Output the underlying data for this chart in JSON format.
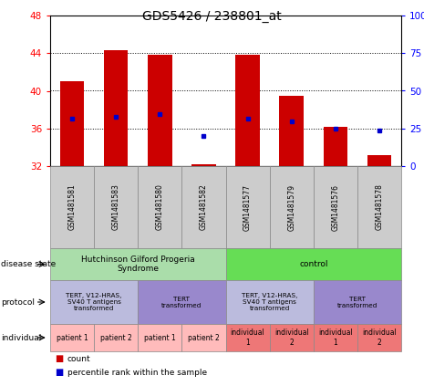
{
  "title": "GDS5426 / 238801_at",
  "samples": [
    "GSM1481581",
    "GSM1481583",
    "GSM1481580",
    "GSM1481582",
    "GSM1481577",
    "GSM1481579",
    "GSM1481576",
    "GSM1481578"
  ],
  "counts": [
    41.0,
    44.3,
    43.8,
    32.2,
    43.8,
    39.5,
    36.2,
    33.2
  ],
  "percentiles": [
    37.0,
    37.2,
    37.5,
    35.2,
    37.0,
    36.8,
    36.0,
    35.8
  ],
  "ylim_left": [
    32,
    48
  ],
  "ylim_right": [
    0,
    100
  ],
  "yticks_left": [
    32,
    36,
    40,
    44,
    48
  ],
  "yticks_right": [
    0,
    25,
    50,
    75,
    100
  ],
  "bar_color": "#cc0000",
  "dot_color": "#0000cc",
  "disease_states": [
    {
      "label": "Hutchinson Gilford Progeria\nSyndrome",
      "cols": [
        0,
        3
      ],
      "color": "#aaddaa"
    },
    {
      "label": "control",
      "cols": [
        4,
        7
      ],
      "color": "#66dd55"
    }
  ],
  "protocol_groups": [
    {
      "label": "TERT, V12-HRAS,\nSV40 T antigens\ntransformed",
      "cols": [
        0,
        1
      ],
      "color": "#bbbbdd"
    },
    {
      "label": "TERT\ntransformed",
      "cols": [
        2,
        3
      ],
      "color": "#9988cc"
    },
    {
      "label": "TERT, V12-HRAS,\nSV40 T antigens\ntransformed",
      "cols": [
        4,
        5
      ],
      "color": "#bbbbdd"
    },
    {
      "label": "TERT\ntransformed",
      "cols": [
        6,
        7
      ],
      "color": "#9988cc"
    }
  ],
  "individual_groups": [
    {
      "label": "patient 1",
      "cols": [
        0,
        0
      ],
      "color": "#ffbbbb"
    },
    {
      "label": "patient 2",
      "cols": [
        1,
        1
      ],
      "color": "#ffbbbb"
    },
    {
      "label": "patient 1",
      "cols": [
        2,
        2
      ],
      "color": "#ffbbbb"
    },
    {
      "label": "patient 2",
      "cols": [
        3,
        3
      ],
      "color": "#ffbbbb"
    },
    {
      "label": "individual\n1",
      "cols": [
        4,
        4
      ],
      "color": "#ee7777"
    },
    {
      "label": "individual\n2",
      "cols": [
        5,
        5
      ],
      "color": "#ee7777"
    },
    {
      "label": "individual\n1",
      "cols": [
        6,
        6
      ],
      "color": "#ee7777"
    },
    {
      "label": "individual\n2",
      "cols": [
        7,
        7
      ],
      "color": "#ee7777"
    }
  ],
  "row_labels": [
    "disease state",
    "protocol",
    "individual"
  ],
  "legend_items": [
    {
      "color": "#cc0000",
      "label": "count"
    },
    {
      "color": "#0000cc",
      "label": "percentile rank within the sample"
    }
  ],
  "sample_box_color": "#cccccc"
}
